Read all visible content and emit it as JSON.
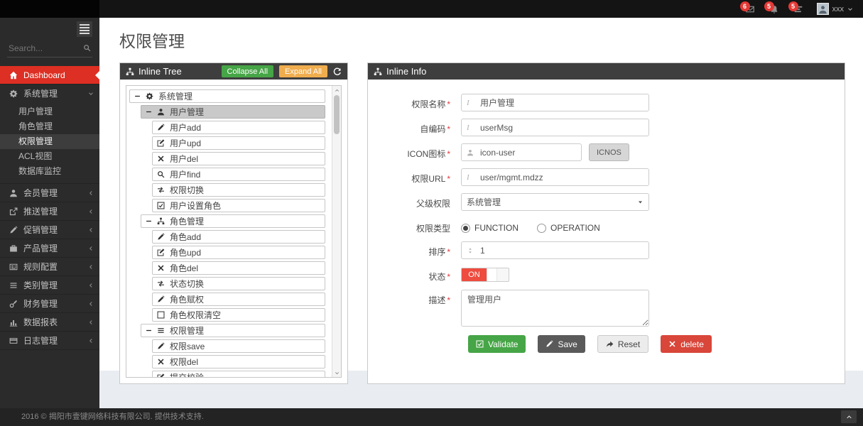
{
  "topbar": {
    "user_name": "xxx",
    "notifications": [
      {
        "name": "messages",
        "icon": "envelope",
        "badge": "6"
      },
      {
        "name": "notifications",
        "icon": "bell",
        "badge": "5"
      },
      {
        "name": "tasks",
        "icon": "tasks",
        "badge": "5"
      }
    ]
  },
  "sidebar": {
    "search_placeholder": "Search...",
    "items": [
      {
        "id": "dashboard",
        "label": "Dashboard",
        "icon": "home",
        "active": true
      },
      {
        "id": "system",
        "label": "系统管理",
        "icon": "gears",
        "arrow": "down",
        "children": [
          "用户管理",
          "角色管理",
          "权限管理",
          "ACL视图",
          "数据库监控"
        ],
        "active_child": "权限管理"
      },
      {
        "id": "members",
        "label": "会员管理",
        "icon": "user",
        "arrow": "left"
      },
      {
        "id": "push",
        "label": "推送管理",
        "icon": "share",
        "arrow": "left"
      },
      {
        "id": "promotion",
        "label": "促销管理",
        "icon": "pencil",
        "arrow": "left"
      },
      {
        "id": "products",
        "label": "产品管理",
        "icon": "briefcase",
        "arrow": "left"
      },
      {
        "id": "rules",
        "label": "规则配置",
        "icon": "newspaper",
        "arrow": "left"
      },
      {
        "id": "categories",
        "label": "类别管理",
        "icon": "bars",
        "arrow": "left"
      },
      {
        "id": "finance",
        "label": "财务管理",
        "icon": "key",
        "arrow": "left"
      },
      {
        "id": "reports",
        "label": "数据报表",
        "icon": "chart",
        "arrow": "left"
      },
      {
        "id": "logs",
        "label": "日志管理",
        "icon": "card",
        "arrow": "left"
      }
    ]
  },
  "page": {
    "title": "权限管理"
  },
  "tree": {
    "title": "Inline Tree",
    "collapse_label": "Collapse All",
    "expand_label": "Expand All",
    "nodes": [
      {
        "label": "系统管理",
        "icon": "gears",
        "children": [
          {
            "label": "用户管理",
            "icon": "user",
            "selected": true,
            "children": [
              {
                "label": "用户add",
                "icon": "pencil"
              },
              {
                "label": "用户upd",
                "icon": "edit"
              },
              {
                "label": "用户del",
                "icon": "x"
              },
              {
                "label": "用户find",
                "icon": "search"
              },
              {
                "label": "权限切换",
                "icon": "retweet"
              },
              {
                "label": "用户设置角色",
                "icon": "check-square"
              }
            ]
          },
          {
            "label": "角色管理",
            "icon": "sitemap",
            "children": [
              {
                "label": "角色add",
                "icon": "pencil"
              },
              {
                "label": "角色upd",
                "icon": "edit"
              },
              {
                "label": "角色del",
                "icon": "x"
              },
              {
                "label": "状态切换",
                "icon": "retweet"
              },
              {
                "label": "角色赋权",
                "icon": "pencil"
              },
              {
                "label": "角色权限清空",
                "icon": "square"
              }
            ]
          },
          {
            "label": "权限管理",
            "icon": "bars",
            "children": [
              {
                "label": "权限save",
                "icon": "pencil"
              },
              {
                "label": "权限del",
                "icon": "x"
              },
              {
                "label": "提交校验",
                "icon": "edit"
              }
            ]
          }
        ]
      }
    ]
  },
  "info": {
    "title": "Inline Info",
    "name": {
      "label": "权限名称",
      "req": "*",
      "value": "用户管理"
    },
    "code": {
      "label": "自编码",
      "req": "*",
      "value": "userMsg"
    },
    "icon": {
      "label": "ICON图标",
      "req": "*",
      "value": "icon-user",
      "button": "ICNOS"
    },
    "url": {
      "label": "权限URL",
      "req": "*",
      "value": "user/mgmt.mdzz"
    },
    "parent": {
      "label": "父级权限",
      "value": "系统管理"
    },
    "type": {
      "label": "权限类型",
      "options": [
        "FUNCTION",
        "OPERATION"
      ],
      "selected": "FUNCTION"
    },
    "sort": {
      "label": "排序",
      "req": "*",
      "value": "1"
    },
    "status": {
      "label": "状态",
      "req": "*",
      "value": "ON"
    },
    "desc": {
      "label": "描述",
      "req": "*",
      "value": "管理用户"
    },
    "buttons": {
      "validate": "Validate",
      "save": "Save",
      "reset": "Reset",
      "delete": "delete"
    }
  },
  "footer": {
    "text": "2016 © 揭阳市壹键网络科技有限公司. 提供技术支持."
  },
  "colors": {
    "accent_red": "#dd2f23",
    "panel_header": "#3e3e3e",
    "green": "#46a546",
    "orange": "#f0ad4e",
    "danger": "#d9463a",
    "toggle_on": "#ed4c3f"
  }
}
